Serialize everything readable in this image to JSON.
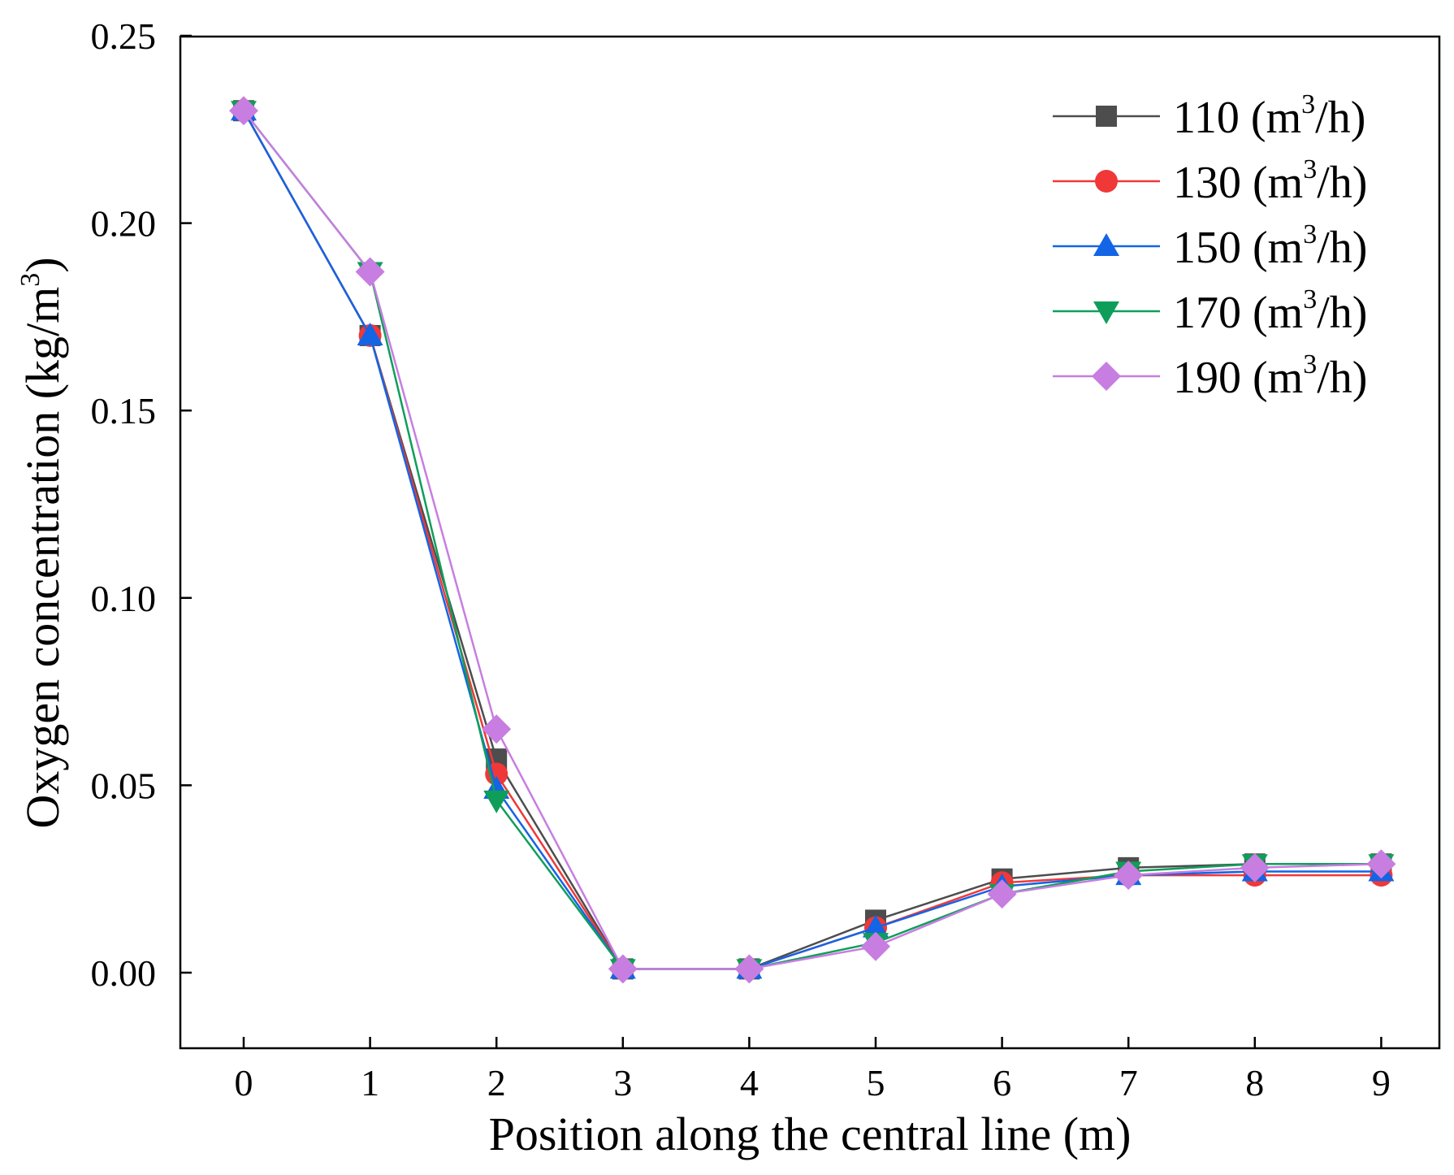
{
  "chart_data": {
    "type": "line",
    "title": "",
    "xlabel": "Position along the central line (m)",
    "ylabel_main": "Oxygen concentration (kg/m",
    "ylabel_sup": "3",
    "ylabel_close": ")",
    "xlim": [
      -0.5,
      9.5
    ],
    "ylim": [
      -0.02,
      0.25
    ],
    "x_ticks": [
      0,
      1,
      2,
      3,
      4,
      5,
      6,
      7,
      8,
      9
    ],
    "x_tick_labels": [
      "0",
      "1",
      "2",
      "3",
      "4",
      "5",
      "6",
      "7",
      "8",
      "9"
    ],
    "y_ticks": [
      0.0,
      0.05,
      0.1,
      0.15,
      0.2,
      0.25
    ],
    "y_tick_labels": [
      "0.00",
      "0.05",
      "0.10",
      "0.15",
      "0.20",
      "0.25"
    ],
    "grid": false,
    "legend_position": "top-right",
    "x": [
      0,
      1,
      2,
      3,
      4,
      5,
      6,
      7,
      8,
      9
    ],
    "series": [
      {
        "name_main": "110 (m",
        "name_sup": "3",
        "name_close": "/h)",
        "color": "#4d4d4d",
        "marker": "square",
        "values": [
          0.23,
          0.17,
          0.057,
          0.001,
          0.001,
          0.014,
          0.025,
          0.028,
          0.029,
          0.029
        ]
      },
      {
        "name_main": "130 (m",
        "name_sup": "3",
        "name_close": "/h)",
        "color": "#f03838",
        "marker": "circle",
        "values": [
          0.23,
          0.17,
          0.053,
          0.001,
          0.001,
          0.012,
          0.024,
          0.026,
          0.026,
          0.026
        ]
      },
      {
        "name_main": "150 (m",
        "name_sup": "3",
        "name_close": "/h)",
        "color": "#1464e6",
        "marker": "triangle-up",
        "values": [
          0.23,
          0.17,
          0.049,
          0.001,
          0.001,
          0.012,
          0.023,
          0.026,
          0.027,
          0.027
        ]
      },
      {
        "name_main": "170 (m",
        "name_sup": "3",
        "name_close": "/h)",
        "color": "#0f9e5a",
        "marker": "triangle-down",
        "values": [
          0.23,
          0.187,
          0.046,
          0.001,
          0.001,
          0.008,
          0.021,
          0.027,
          0.029,
          0.029
        ]
      },
      {
        "name_main": "190 (m",
        "name_sup": "3",
        "name_close": "/h)",
        "color": "#c77ee0",
        "marker": "diamond",
        "values": [
          0.23,
          0.187,
          0.065,
          0.001,
          0.001,
          0.007,
          0.021,
          0.026,
          0.028,
          0.029
        ]
      }
    ]
  }
}
